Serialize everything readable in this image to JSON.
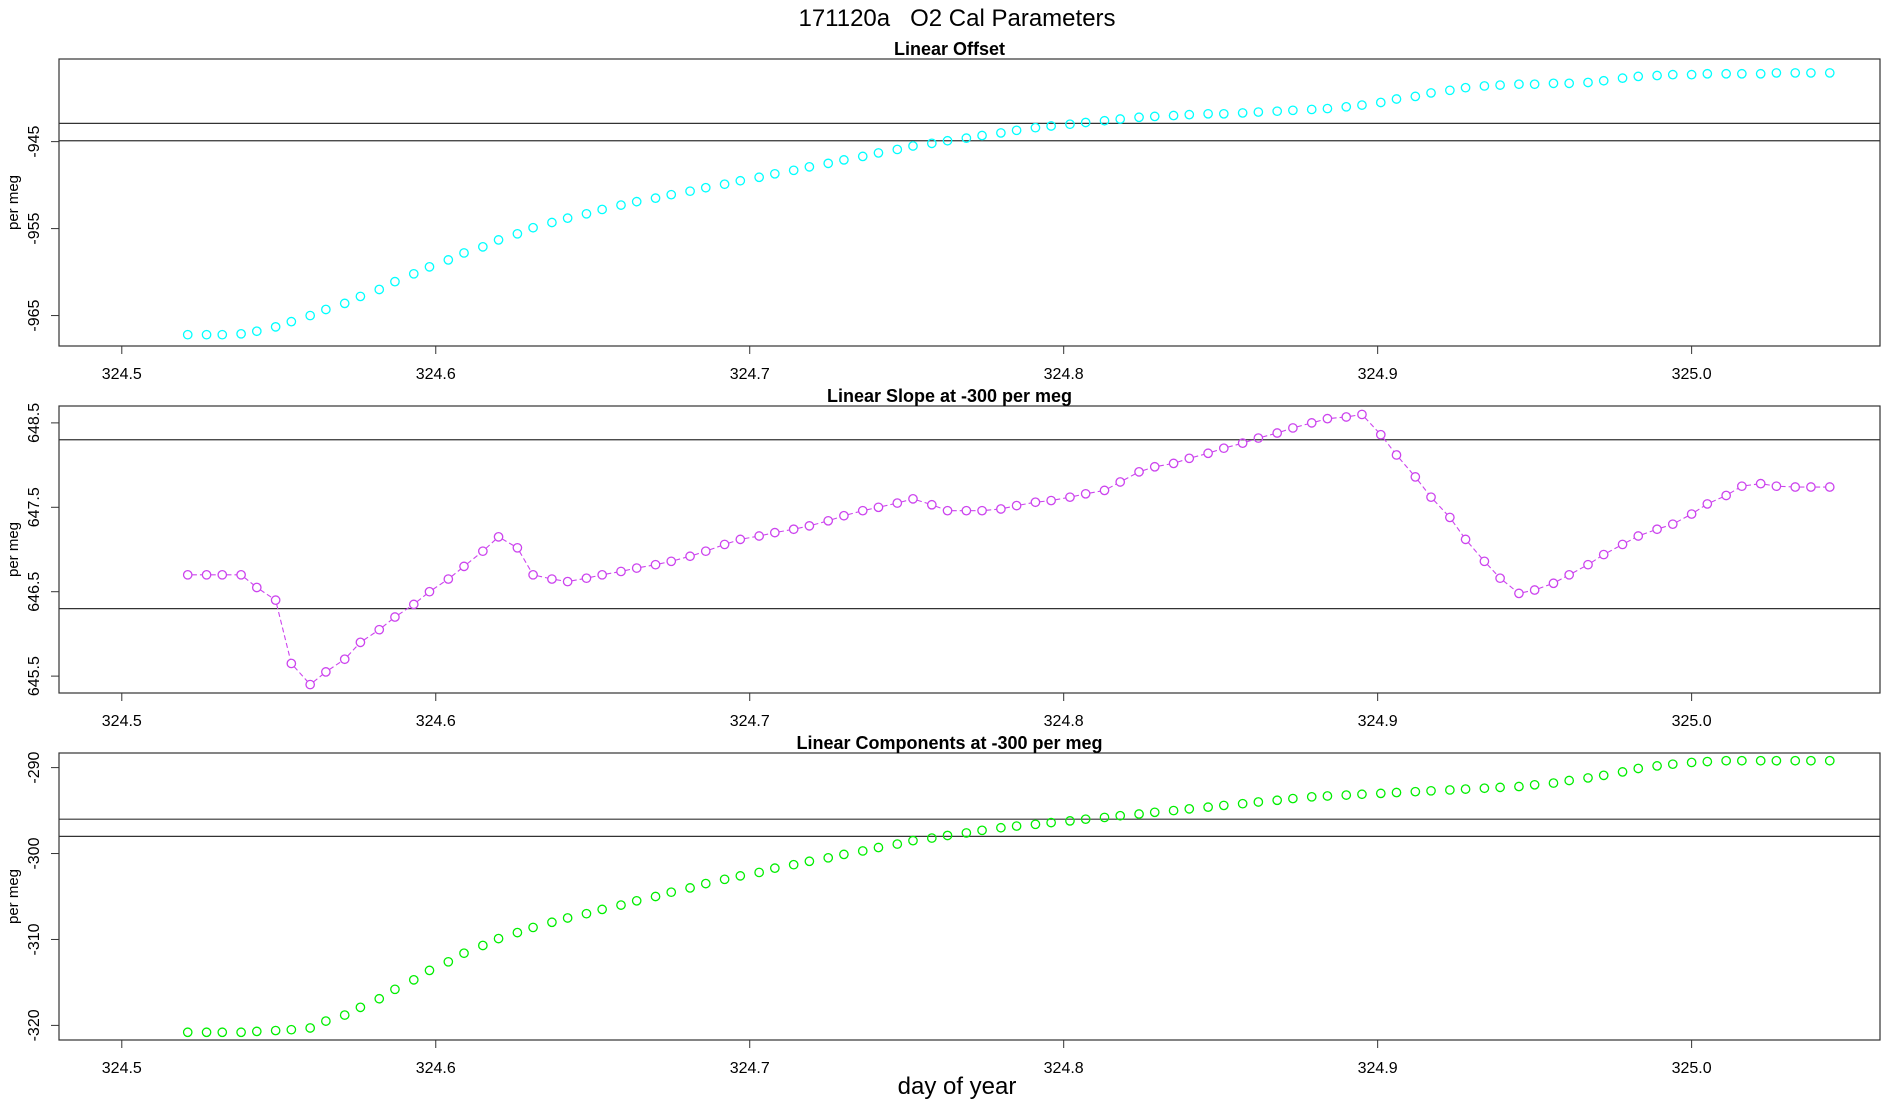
{
  "figure": {
    "title": "171120a   O2 Cal Parameters",
    "xlabel": "day of year"
  },
  "chart_data": [
    {
      "type": "scatter",
      "title": "Linear Offset",
      "ylabel": "per meg",
      "color": "#00ffff",
      "connect": false,
      "xlim": [
        324.48,
        325.06
      ],
      "ylim": [
        -968.5,
        -935.5
      ],
      "xticks": [
        324.5,
        324.6,
        324.7,
        324.8,
        324.9,
        325.0
      ],
      "xtick_labels": [
        "324.5",
        "324.6",
        "324.7",
        "324.8",
        "324.9",
        "325.0"
      ],
      "yticks": [
        -945,
        -955,
        -965
      ],
      "ytick_labels": [
        "-945",
        "-955",
        "-965"
      ],
      "hlines": [
        -942.9,
        -944.9
      ],
      "x": [
        324.521,
        324.527,
        324.532,
        324.538,
        324.543,
        324.549,
        324.554,
        324.56,
        324.565,
        324.571,
        324.576,
        324.582,
        324.587,
        324.593,
        324.598,
        324.604,
        324.609,
        324.615,
        324.62,
        324.626,
        324.631,
        324.637,
        324.642,
        324.648,
        324.653,
        324.659,
        324.664,
        324.67,
        324.675,
        324.681,
        324.686,
        324.692,
        324.697,
        324.703,
        324.708,
        324.714,
        324.719,
        324.725,
        324.73,
        324.736,
        324.741,
        324.747,
        324.752,
        324.758,
        324.763,
        324.769,
        324.774,
        324.78,
        324.785,
        324.791,
        324.796,
        324.802,
        324.807,
        324.813,
        324.818,
        324.824,
        324.829,
        324.835,
        324.84,
        324.846,
        324.851,
        324.857,
        324.862,
        324.868,
        324.873,
        324.879,
        324.884,
        324.89,
        324.895,
        324.901,
        324.906,
        324.912,
        324.917,
        324.923,
        324.928,
        324.934,
        324.939,
        324.945,
        324.95,
        324.956,
        324.961,
        324.967,
        324.972,
        324.978,
        324.983,
        324.989,
        324.994,
        325.0,
        325.005,
        325.011,
        325.016,
        325.022,
        325.027,
        325.033,
        325.038,
        325.044
      ],
      "y": [
        -967.2,
        -967.2,
        -967.2,
        -967.1,
        -966.8,
        -966.3,
        -965.7,
        -965.0,
        -964.3,
        -963.6,
        -962.8,
        -962.0,
        -961.1,
        -960.2,
        -959.4,
        -958.6,
        -957.8,
        -957.1,
        -956.3,
        -955.6,
        -954.9,
        -954.3,
        -953.8,
        -953.3,
        -952.8,
        -952.3,
        -951.9,
        -951.5,
        -951.1,
        -950.7,
        -950.3,
        -949.9,
        -949.5,
        -949.1,
        -948.7,
        -948.3,
        -947.9,
        -947.5,
        -947.1,
        -946.7,
        -946.3,
        -945.9,
        -945.5,
        -945.2,
        -944.9,
        -944.6,
        -944.3,
        -944.0,
        -943.7,
        -943.4,
        -943.2,
        -943.0,
        -942.8,
        -942.6,
        -942.4,
        -942.2,
        -942.1,
        -942.0,
        -941.9,
        -941.8,
        -941.8,
        -941.7,
        -941.6,
        -941.5,
        -941.4,
        -941.3,
        -941.2,
        -941.0,
        -940.8,
        -940.5,
        -940.1,
        -939.8,
        -939.4,
        -939.1,
        -938.8,
        -938.6,
        -938.5,
        -938.4,
        -938.4,
        -938.3,
        -938.3,
        -938.2,
        -938.0,
        -937.7,
        -937.5,
        -937.4,
        -937.3,
        -937.3,
        -937.2,
        -937.2,
        -937.2,
        -937.2,
        -937.1,
        -937.1,
        -937.1,
        -937.1
      ]
    },
    {
      "type": "line",
      "title": "Linear Slope at -300 per meg",
      "ylabel": "per meg",
      "color": "#cc44ee",
      "connect": true,
      "xlim": [
        324.48,
        325.06
      ],
      "ylim": [
        645.3,
        648.7
      ],
      "xticks": [
        324.5,
        324.6,
        324.7,
        324.8,
        324.9,
        325.0
      ],
      "xtick_labels": [
        "324.5",
        "324.6",
        "324.7",
        "324.8",
        "324.9",
        "325.0"
      ],
      "yticks": [
        648.5,
        647.5,
        646.5,
        645.5
      ],
      "ytick_labels": [
        "648.5",
        "647.5",
        "646.5",
        "645.5"
      ],
      "hlines": [
        648.3,
        646.3
      ],
      "x": [
        324.521,
        324.527,
        324.532,
        324.538,
        324.543,
        324.549,
        324.554,
        324.56,
        324.565,
        324.571,
        324.576,
        324.582,
        324.587,
        324.593,
        324.598,
        324.604,
        324.609,
        324.615,
        324.62,
        324.626,
        324.631,
        324.637,
        324.642,
        324.648,
        324.653,
        324.659,
        324.664,
        324.67,
        324.675,
        324.681,
        324.686,
        324.692,
        324.697,
        324.703,
        324.708,
        324.714,
        324.719,
        324.725,
        324.73,
        324.736,
        324.741,
        324.747,
        324.752,
        324.758,
        324.763,
        324.769,
        324.774,
        324.78,
        324.785,
        324.791,
        324.796,
        324.802,
        324.807,
        324.813,
        324.818,
        324.824,
        324.829,
        324.835,
        324.84,
        324.846,
        324.851,
        324.857,
        324.862,
        324.868,
        324.873,
        324.879,
        324.884,
        324.89,
        324.895,
        324.901,
        324.906,
        324.912,
        324.917,
        324.923,
        324.928,
        324.934,
        324.939,
        324.945,
        324.95,
        324.956,
        324.961,
        324.967,
        324.972,
        324.978,
        324.983,
        324.989,
        324.994,
        325.0,
        325.005,
        325.011,
        325.016,
        325.022,
        325.027,
        325.033,
        325.038,
        325.044
      ],
      "y": [
        646.7,
        646.7,
        646.7,
        646.7,
        646.55,
        646.4,
        645.65,
        645.4,
        645.55,
        645.7,
        645.9,
        646.05,
        646.2,
        646.35,
        646.5,
        646.65,
        646.8,
        646.98,
        647.15,
        647.02,
        646.7,
        646.65,
        646.62,
        646.66,
        646.7,
        646.74,
        646.78,
        646.82,
        646.86,
        646.92,
        646.98,
        647.06,
        647.12,
        647.16,
        647.2,
        647.24,
        647.28,
        647.34,
        647.4,
        647.46,
        647.5,
        647.55,
        647.6,
        647.53,
        647.46,
        647.46,
        647.46,
        647.48,
        647.52,
        647.56,
        647.58,
        647.62,
        647.66,
        647.7,
        647.8,
        647.92,
        647.98,
        648.02,
        648.08,
        648.14,
        648.2,
        648.26,
        648.32,
        648.38,
        648.44,
        648.5,
        648.55,
        648.57,
        648.6,
        648.36,
        648.12,
        647.86,
        647.62,
        647.38,
        647.12,
        646.86,
        646.66,
        646.48,
        646.52,
        646.6,
        646.7,
        646.82,
        646.94,
        647.06,
        647.16,
        647.24,
        647.3,
        647.42,
        647.54,
        647.64,
        647.75,
        647.78,
        647.75,
        647.74,
        647.74,
        647.74
      ]
    },
    {
      "type": "scatter",
      "title": "Linear Components at -300 per meg",
      "ylabel": "per meg",
      "color": "#00ee00",
      "connect": false,
      "xlim": [
        324.48,
        325.06
      ],
      "ylim": [
        -321.7,
        -288.3
      ],
      "xticks": [
        324.5,
        324.6,
        324.7,
        324.8,
        324.9,
        325.0
      ],
      "xtick_labels": [
        "324.5",
        "324.6",
        "324.7",
        "324.8",
        "324.9",
        "325.0"
      ],
      "yticks": [
        -290,
        -300,
        -310,
        -320
      ],
      "ytick_labels": [
        "-290",
        "-300",
        "-310",
        "-320"
      ],
      "hlines": [
        -296.0,
        -298.0
      ],
      "x": [
        324.521,
        324.527,
        324.532,
        324.538,
        324.543,
        324.549,
        324.554,
        324.56,
        324.565,
        324.571,
        324.576,
        324.582,
        324.587,
        324.593,
        324.598,
        324.604,
        324.609,
        324.615,
        324.62,
        324.626,
        324.631,
        324.637,
        324.642,
        324.648,
        324.653,
        324.659,
        324.664,
        324.67,
        324.675,
        324.681,
        324.686,
        324.692,
        324.697,
        324.703,
        324.708,
        324.714,
        324.719,
        324.725,
        324.73,
        324.736,
        324.741,
        324.747,
        324.752,
        324.758,
        324.763,
        324.769,
        324.774,
        324.78,
        324.785,
        324.791,
        324.796,
        324.802,
        324.807,
        324.813,
        324.818,
        324.824,
        324.829,
        324.835,
        324.84,
        324.846,
        324.851,
        324.857,
        324.862,
        324.868,
        324.873,
        324.879,
        324.884,
        324.89,
        324.895,
        324.901,
        324.906,
        324.912,
        324.917,
        324.923,
        324.928,
        324.934,
        324.939,
        324.945,
        324.95,
        324.956,
        324.961,
        324.967,
        324.972,
        324.978,
        324.983,
        324.989,
        324.994,
        325.0,
        325.005,
        325.011,
        325.016,
        325.022,
        325.027,
        325.033,
        325.038,
        325.044
      ],
      "y": [
        -320.8,
        -320.8,
        -320.8,
        -320.8,
        -320.7,
        -320.6,
        -320.5,
        -320.3,
        -319.5,
        -318.8,
        -317.9,
        -316.9,
        -315.8,
        -314.7,
        -313.6,
        -312.6,
        -311.6,
        -310.7,
        -309.9,
        -309.2,
        -308.6,
        -308.0,
        -307.5,
        -307.0,
        -306.5,
        -306.0,
        -305.5,
        -305.0,
        -304.5,
        -304.0,
        -303.5,
        -303.0,
        -302.6,
        -302.2,
        -301.7,
        -301.3,
        -300.9,
        -300.5,
        -300.1,
        -299.7,
        -299.3,
        -298.9,
        -298.5,
        -298.2,
        -297.9,
        -297.6,
        -297.3,
        -297.0,
        -296.8,
        -296.6,
        -296.4,
        -296.2,
        -296.0,
        -295.8,
        -295.6,
        -295.4,
        -295.2,
        -295.0,
        -294.8,
        -294.6,
        -294.4,
        -294.2,
        -294.0,
        -293.8,
        -293.6,
        -293.4,
        -293.3,
        -293.2,
        -293.1,
        -293.0,
        -292.9,
        -292.8,
        -292.7,
        -292.6,
        -292.5,
        -292.4,
        -292.3,
        -292.2,
        -292.0,
        -291.8,
        -291.5,
        -291.2,
        -290.9,
        -290.5,
        -290.1,
        -289.8,
        -289.6,
        -289.4,
        -289.3,
        -289.2,
        -289.2,
        -289.2,
        -289.2,
        -289.2,
        -289.2,
        -289.2
      ]
    }
  ]
}
